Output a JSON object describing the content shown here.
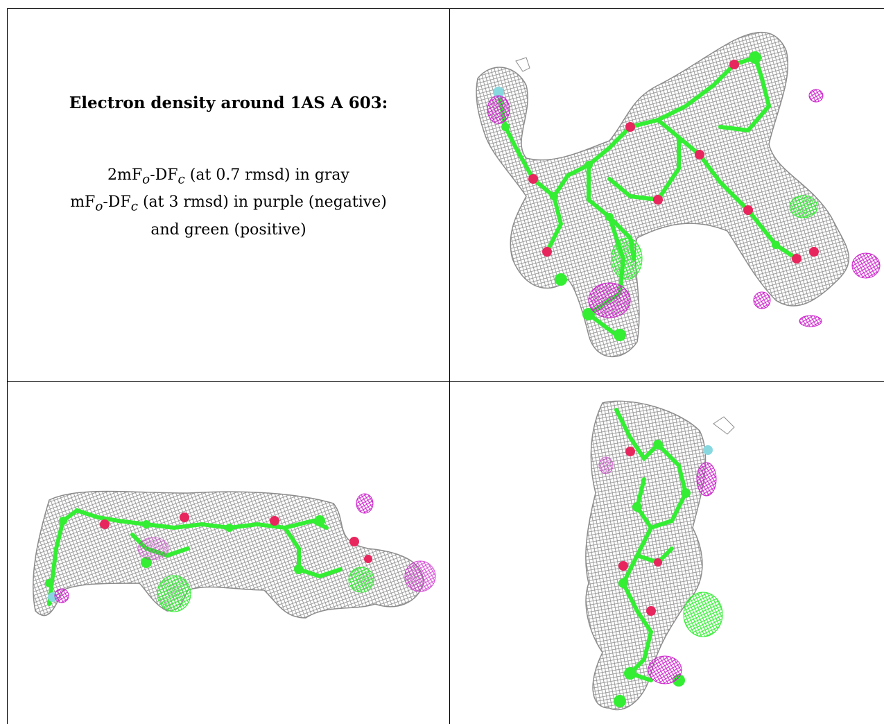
{
  "title": "Electron density around 1AS A 603:",
  "legend": {
    "line1": {
      "a": "2mF",
      "sub1": "o",
      "b": "-DF",
      "sub2": "c",
      "rest": " (at 0.7 rmsd) in gray"
    },
    "line2": {
      "a": "mF",
      "sub1": "o",
      "b": "-DF",
      "sub2": "c",
      "rest": " (at 3 rmsd) in purple (negative)"
    },
    "line3": "and green (positive)"
  },
  "colors": {
    "mesh_2fofc": "#8c8c8c",
    "negative": "#cc22cc",
    "positive": "#33ee33",
    "carbon": "#33ee33",
    "oxygen": "#e8265e",
    "fluorine": "#88d8e0"
  },
  "views": [
    {
      "name": "view-top-right",
      "icon": "electron-density-map-icon"
    },
    {
      "name": "view-bottom-left",
      "icon": "electron-density-map-icon"
    },
    {
      "name": "view-bottom-right",
      "icon": "electron-density-map-icon"
    }
  ]
}
